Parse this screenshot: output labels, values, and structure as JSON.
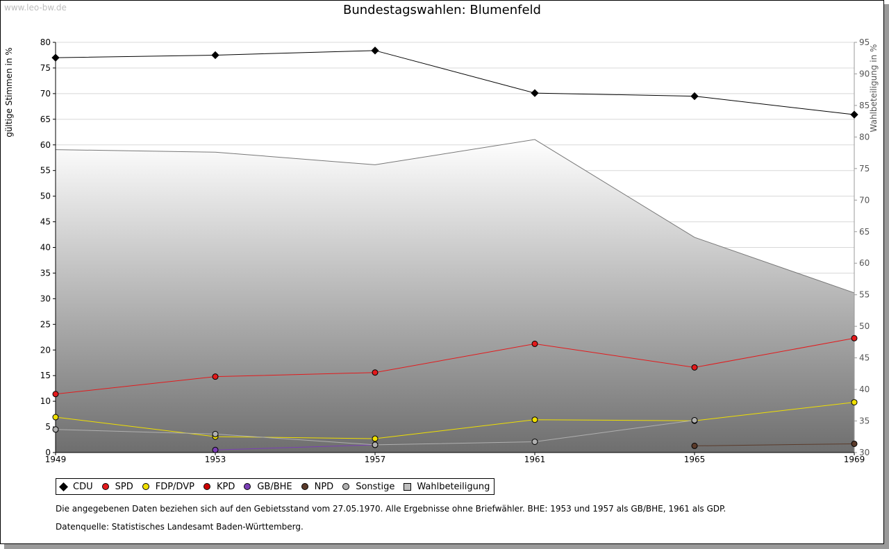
{
  "watermark": "www.leo-bw.de",
  "title": "Bundestagswahlen: Blumenfeld",
  "notes": [
    "Die angegebenen Daten beziehen sich auf den Gebietsstand vom 27.05.1970. Alle Ergebnisse ohne Briefwähler. BHE: 1953 und 1957 als GB/BHE, 1961 als GDP.",
    "Datenquelle: Statistisches Landesamt Baden-Württemberg."
  ],
  "chart_data": {
    "type": "line",
    "title": "Bundestagswahlen: Blumenfeld",
    "x": [
      1949,
      1953,
      1957,
      1961,
      1965,
      1969
    ],
    "ylabel": "gültige Stimmen in %",
    "y2label": "Wahlbeteiligung in %",
    "ylim": [
      0,
      80
    ],
    "y2lim": [
      30,
      95
    ],
    "yticks": [
      0,
      5,
      10,
      15,
      20,
      25,
      30,
      35,
      40,
      45,
      50,
      55,
      60,
      65,
      70,
      75,
      80
    ],
    "y2ticks": [
      30,
      35,
      40,
      45,
      50,
      55,
      60,
      65,
      70,
      75,
      80,
      85,
      90,
      95
    ],
    "grid": true,
    "legend_position": "bottom",
    "series": [
      {
        "name": "CDU",
        "color": "#000000",
        "marker": "diamond",
        "values": [
          77.0,
          77.5,
          78.4,
          70.1,
          69.5,
          65.9
        ]
      },
      {
        "name": "SPD",
        "color": "#e31a1c",
        "marker": "circle",
        "values": [
          11.4,
          14.8,
          15.6,
          21.2,
          16.6,
          22.3
        ]
      },
      {
        "name": "FDP/DVP",
        "color": "#f0e000",
        "marker": "circle",
        "values": [
          6.9,
          3.1,
          2.7,
          6.4,
          6.2,
          9.8
        ]
      },
      {
        "name": "KPD",
        "color": "#cc0000",
        "marker": "circle",
        "values": [
          null,
          null,
          null,
          null,
          null,
          null
        ]
      },
      {
        "name": "GB/BHE",
        "color": "#7a3fb5",
        "marker": "circle",
        "values": [
          null,
          0.5,
          1.5,
          null,
          null,
          null
        ]
      },
      {
        "name": "NPD",
        "color": "#5a3a2a",
        "marker": "circle",
        "values": [
          null,
          null,
          null,
          null,
          1.3,
          1.7
        ]
      },
      {
        "name": "Sonstige",
        "color": "#b0b0b0",
        "marker": "circle",
        "values": [
          4.5,
          3.6,
          1.5,
          2.1,
          6.3,
          null
        ]
      },
      {
        "name": "Wahlbeteiligung",
        "color": "#777777",
        "marker": "square",
        "axis": "right",
        "type": "area",
        "values": [
          78.0,
          77.6,
          75.6,
          79.6,
          64.1,
          55.3
        ]
      }
    ]
  }
}
